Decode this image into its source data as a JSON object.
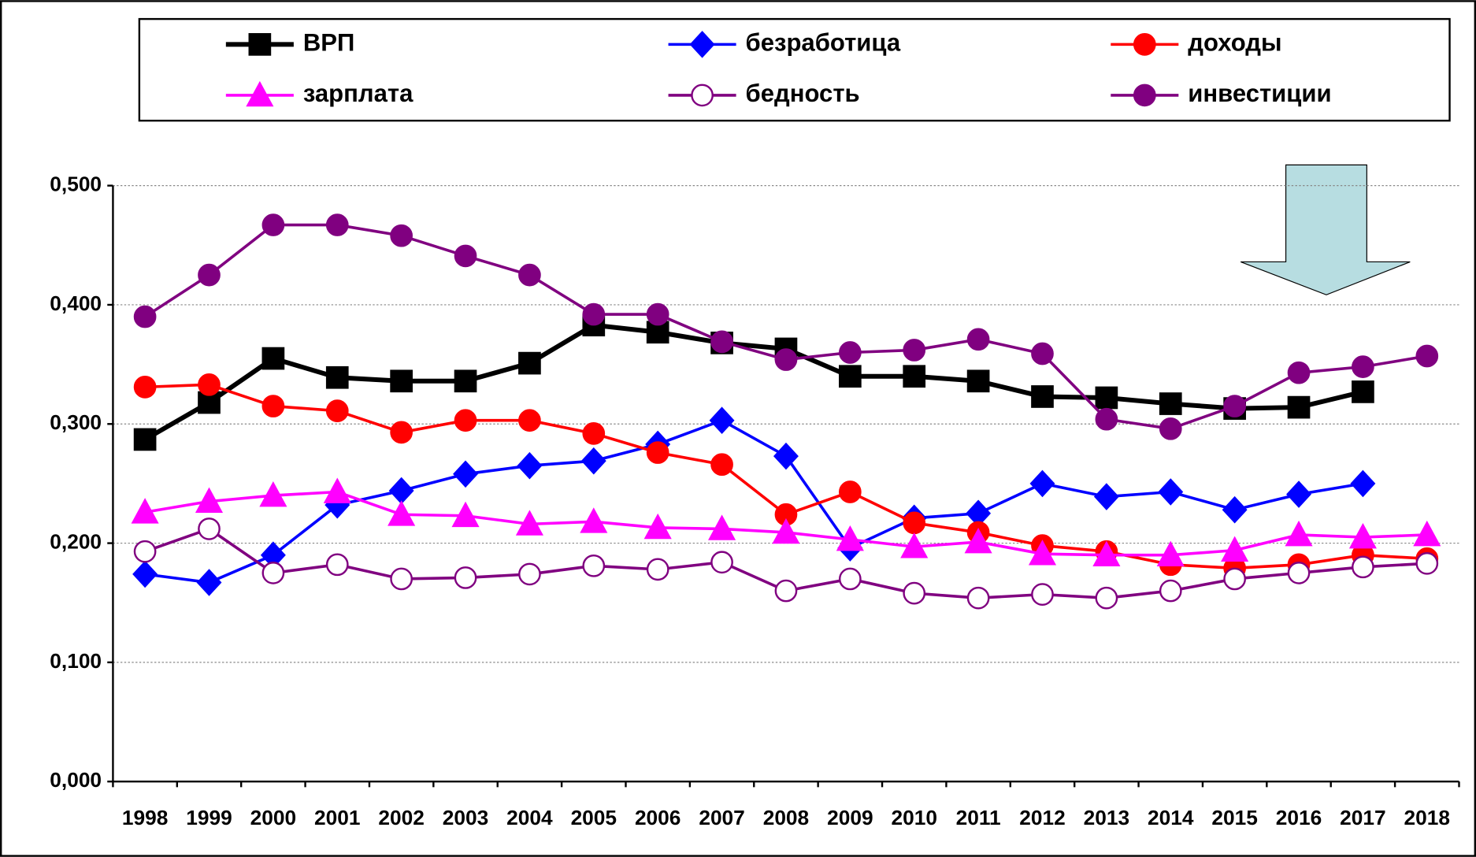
{
  "chart_data": {
    "type": "line",
    "categories": [
      "1998",
      "1999",
      "2000",
      "2001",
      "2002",
      "2003",
      "2004",
      "2005",
      "2006",
      "2007",
      "2008",
      "2009",
      "2010",
      "2011",
      "2012",
      "2013",
      "2014",
      "2015",
      "2016",
      "2017",
      "2018"
    ],
    "ylim": [
      0,
      0.5
    ],
    "yticks": [
      {
        "value": 0,
        "label": "0,000"
      },
      {
        "value": 0.1,
        "label": "0,100"
      },
      {
        "value": 0.2,
        "label": "0,200"
      },
      {
        "value": 0.3,
        "label": "0,300"
      },
      {
        "value": 0.4,
        "label": "0,400"
      },
      {
        "value": 0.5,
        "label": "0,500"
      }
    ],
    "grid": true,
    "legend": "top",
    "series": [
      {
        "name": "ВРП",
        "color": "#000000",
        "marker": "square",
        "values": [
          0.287,
          0.318,
          0.355,
          0.339,
          0.336,
          0.336,
          0.351,
          0.383,
          0.377,
          0.368,
          0.363,
          0.34,
          0.34,
          0.336,
          0.323,
          0.322,
          0.317,
          0.313,
          0.314,
          0.327,
          null
        ]
      },
      {
        "name": "безработица",
        "color": "#0000ff",
        "marker": "diamond",
        "values": [
          0.174,
          0.167,
          0.19,
          0.232,
          0.244,
          0.258,
          0.265,
          0.269,
          0.283,
          0.303,
          0.273,
          0.196,
          0.221,
          0.225,
          0.25,
          0.239,
          0.243,
          0.228,
          0.241,
          0.25,
          null
        ]
      },
      {
        "name": "доходы",
        "color": "#ff0000",
        "marker": "circle",
        "values": [
          0.331,
          0.333,
          0.315,
          0.311,
          0.293,
          0.303,
          0.303,
          0.292,
          0.276,
          0.266,
          0.224,
          0.243,
          0.217,
          0.209,
          0.198,
          0.193,
          0.182,
          0.179,
          0.182,
          0.19,
          0.187
        ]
      },
      {
        "name": "зарплата",
        "color": "#ff00ff",
        "marker": "triangle",
        "values": [
          0.226,
          0.235,
          0.24,
          0.243,
          0.224,
          0.223,
          0.216,
          0.218,
          0.213,
          0.212,
          0.209,
          0.203,
          0.197,
          0.201,
          0.191,
          0.19,
          0.19,
          0.194,
          0.207,
          0.205,
          0.207
        ]
      },
      {
        "name": "бедность",
        "color": "#800080",
        "marker": "open-circle",
        "values": [
          0.193,
          0.212,
          0.175,
          0.182,
          0.17,
          0.171,
          0.174,
          0.181,
          0.178,
          0.184,
          0.16,
          0.17,
          0.158,
          0.154,
          0.157,
          0.154,
          0.16,
          0.17,
          0.175,
          0.18,
          0.183
        ]
      },
      {
        "name": "инвестиции",
        "color": "#800080",
        "marker": "circle",
        "values": [
          0.39,
          0.425,
          0.467,
          0.467,
          0.458,
          0.441,
          0.425,
          0.392,
          0.392,
          0.369,
          0.354,
          0.36,
          0.362,
          0.371,
          0.359,
          0.304,
          0.296,
          0.315,
          0.343,
          0.348,
          0.357
        ]
      }
    ]
  }
}
